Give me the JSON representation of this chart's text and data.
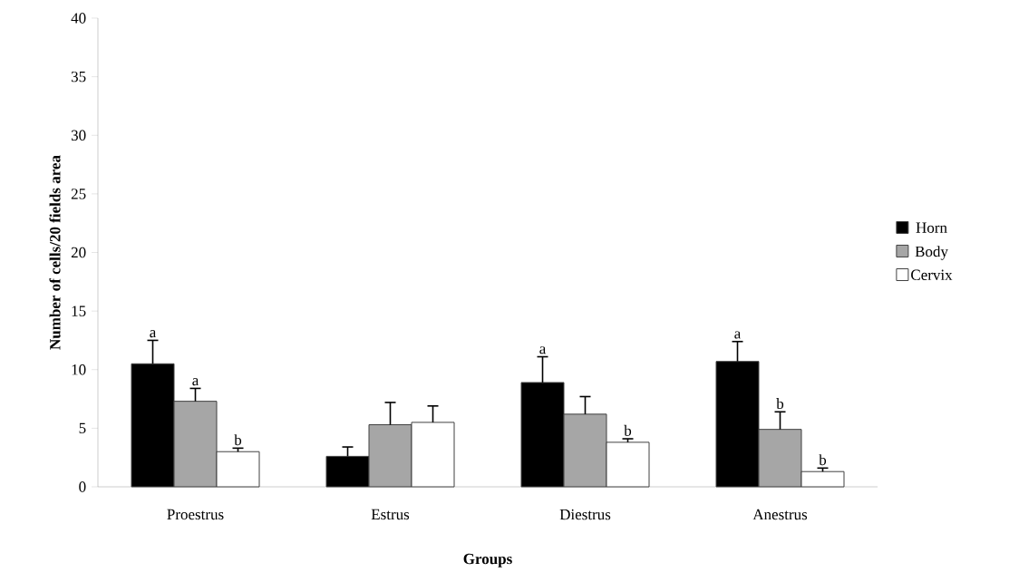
{
  "chart_data": {
    "type": "bar",
    "xlabel": "**Groups**",
    "ylabel": "**Number of cells/20 fields area**",
    "categories": [
      "Proestrus",
      "Estrus",
      "Diestrus",
      "Anestrus"
    ],
    "series": [
      {
        "name": "Horn",
        "color": "#000000",
        "values": [
          10.5,
          2.6,
          8.9,
          10.7
        ],
        "errors": [
          2.0,
          0.8,
          2.2,
          1.7
        ],
        "value_labels": [
          "a",
          null,
          "a",
          "a"
        ]
      },
      {
        "name": "Body",
        "color": "#a6a6a6",
        "values": [
          7.3,
          5.3,
          6.2,
          4.9
        ],
        "errors": [
          1.1,
          1.9,
          1.5,
          1.5
        ],
        "value_labels": [
          "a",
          null,
          null,
          "b"
        ]
      },
      {
        "name": "Cervix",
        "color": "#ffffff",
        "values": [
          3.0,
          5.5,
          3.8,
          1.3
        ],
        "errors": [
          0.3,
          1.4,
          0.3,
          0.3
        ],
        "value_labels": [
          "b",
          null,
          "b",
          "b"
        ]
      }
    ],
    "ylim": [
      0,
      40
    ],
    "yticks": [
      0,
      5,
      10,
      15,
      20,
      25,
      30,
      35,
      40
    ],
    "grid": false,
    "legend": "right"
  }
}
